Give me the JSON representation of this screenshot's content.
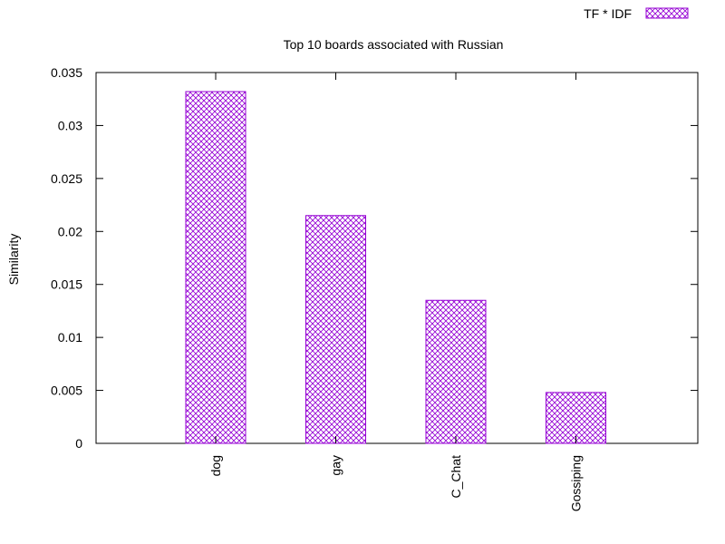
{
  "chart_data": {
    "type": "bar",
    "title": "Top 10 boards associated with Russian",
    "xlabel": "",
    "ylabel": "Similarity",
    "categories": [
      "dog",
      "gay",
      "C_Chat",
      "Gossiping"
    ],
    "series": [
      {
        "name": "TF * IDF",
        "values": [
          0.0332,
          0.0215,
          0.0135,
          0.0048
        ]
      }
    ],
    "ylim": [
      0,
      0.035
    ],
    "yticks": [
      "0",
      "0.005",
      "0.01",
      "0.015",
      "0.02",
      "0.025",
      "0.03",
      "0.035"
    ],
    "legend_position": "top-right",
    "grid": false,
    "bar_pattern": "crosshatch",
    "bar_color": "#9400d3"
  }
}
